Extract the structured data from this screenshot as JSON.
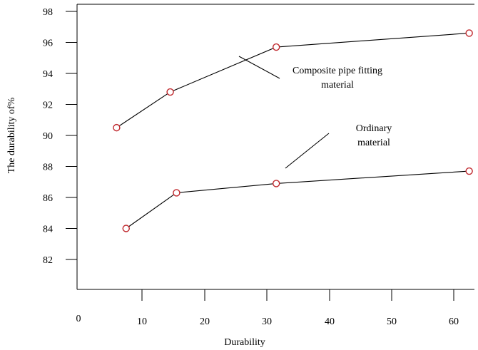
{
  "chart_data": {
    "type": "line",
    "title": "",
    "xlabel": "Durability",
    "ylabel": "The durability of%",
    "x_ticks": [
      0,
      10,
      20,
      30,
      40,
      50,
      60
    ],
    "y_ticks": [
      82,
      84,
      86,
      88,
      90,
      92,
      94,
      96,
      98
    ],
    "xlim": [
      0,
      63
    ],
    "ylim": [
      80.2,
      98
    ],
    "grid": false,
    "legend": "none",
    "series": [
      {
        "name": "Composite pipe fitting material",
        "color": "#000000",
        "marker_color": "#c0282d",
        "x": [
          6,
          14.5,
          31.5,
          62.5
        ],
        "y": [
          90.5,
          92.8,
          95.7,
          96.6
        ]
      },
      {
        "name": "Ordinary material",
        "color": "#000000",
        "marker_color": "#c0282d",
        "x": [
          7.5,
          15.5,
          31.5,
          62.5
        ],
        "y": [
          84.0,
          86.3,
          86.9,
          87.7
        ]
      }
    ],
    "annotations": [
      {
        "lines": [
          "Composite pipe fitting",
          "material"
        ],
        "points_to_series": 0
      },
      {
        "lines": [
          "Ordinary",
          "material"
        ],
        "points_to_series": 1
      }
    ]
  }
}
